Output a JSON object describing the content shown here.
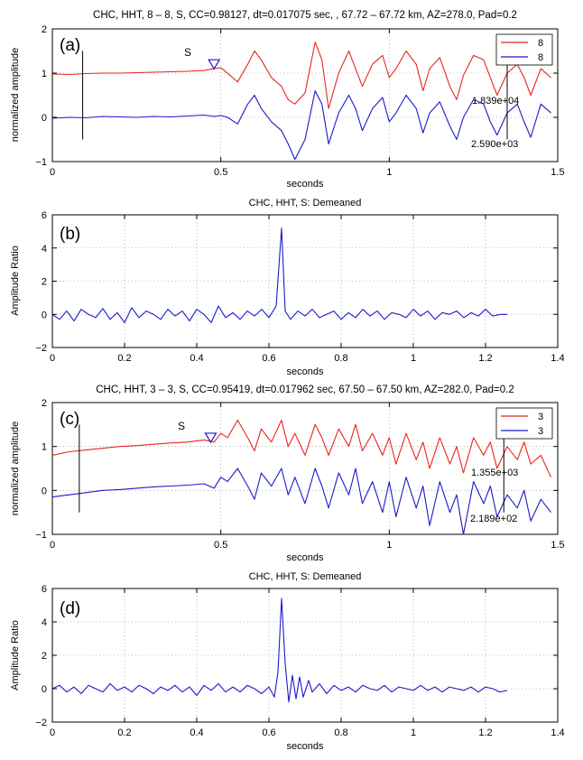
{
  "chart_data": [
    {
      "id": "a",
      "type": "line",
      "panel_label": "(a)",
      "title": "CHC, HHT, 8 – 8, S, CC=0.98127,  dt=0.017075 sec,  , 67.72 – 67.72 km, AZ=278.0, Pad=0.2",
      "xlabel": "seconds",
      "ylabel": "normalized amplitude",
      "xlim": [
        0,
        1.5
      ],
      "ylim": [
        -1,
        2
      ],
      "xticks": [
        0,
        0.5,
        1,
        1.5
      ],
      "xtick_labels": [
        "0",
        "0.5",
        "1",
        "1.5"
      ],
      "yticks": [
        -1,
        0,
        1,
        2
      ],
      "ytick_labels": [
        "−1",
        "0",
        "1",
        "2"
      ],
      "grid": true,
      "legend_placement": "top-right",
      "series": [
        {
          "name": "8",
          "color": "#e8251e",
          "x": [
            0,
            0.05,
            0.1,
            0.15,
            0.2,
            0.25,
            0.3,
            0.35,
            0.4,
            0.45,
            0.48,
            0.5,
            0.52,
            0.55,
            0.58,
            0.6,
            0.62,
            0.65,
            0.68,
            0.7,
            0.72,
            0.75,
            0.78,
            0.8,
            0.82,
            0.85,
            0.88,
            0.9,
            0.92,
            0.95,
            0.98,
            1.0,
            1.02,
            1.05,
            1.08,
            1.1,
            1.12,
            1.15,
            1.18,
            1.2,
            1.22,
            1.25,
            1.28,
            1.3,
            1.32,
            1.35,
            1.38,
            1.4,
            1.42,
            1.45,
            1.48
          ],
          "y": [
            0.98,
            0.97,
            0.99,
            1.0,
            1.0,
            1.01,
            1.02,
            1.03,
            1.04,
            1.06,
            1.1,
            1.12,
            1.0,
            0.8,
            1.2,
            1.5,
            1.3,
            0.9,
            0.7,
            0.4,
            0.3,
            0.55,
            1.7,
            1.3,
            0.2,
            1.0,
            1.5,
            1.1,
            0.7,
            1.2,
            1.4,
            0.9,
            1.1,
            1.5,
            1.2,
            0.6,
            1.1,
            1.35,
            0.7,
            0.4,
            0.95,
            1.4,
            1.3,
            0.9,
            0.5,
            1.0,
            1.2,
            0.9,
            0.5,
            1.1,
            0.9
          ]
        },
        {
          "name": "8",
          "color": "#1a1acc",
          "x": [
            0,
            0.05,
            0.1,
            0.15,
            0.2,
            0.25,
            0.3,
            0.35,
            0.4,
            0.45,
            0.48,
            0.5,
            0.52,
            0.55,
            0.58,
            0.6,
            0.62,
            0.65,
            0.68,
            0.7,
            0.72,
            0.75,
            0.78,
            0.8,
            0.82,
            0.85,
            0.88,
            0.9,
            0.92,
            0.95,
            0.98,
            1.0,
            1.02,
            1.05,
            1.08,
            1.1,
            1.12,
            1.15,
            1.18,
            1.2,
            1.22,
            1.25,
            1.28,
            1.3,
            1.32,
            1.35,
            1.38,
            1.4,
            1.42,
            1.45,
            1.48
          ],
          "y": [
            -0.02,
            0.0,
            -0.01,
            0.02,
            0.01,
            0.0,
            0.02,
            0.01,
            0.03,
            0.05,
            0.02,
            0.04,
            0.0,
            -0.15,
            0.3,
            0.5,
            0.2,
            -0.1,
            -0.3,
            -0.6,
            -0.95,
            -0.5,
            0.6,
            0.3,
            -0.6,
            0.1,
            0.5,
            0.2,
            -0.3,
            0.2,
            0.45,
            -0.1,
            0.1,
            0.5,
            0.2,
            -0.35,
            0.1,
            0.35,
            -0.2,
            -0.5,
            0.0,
            0.4,
            0.3,
            -0.1,
            -0.4,
            0.1,
            0.3,
            -0.1,
            -0.45,
            0.3,
            0.1
          ]
        }
      ],
      "vertical_markers": [
        {
          "x": 0.09
        },
        {
          "x": 1.35
        }
      ],
      "pick": {
        "label": "S",
        "x": 0.48,
        "y": 1.2
      },
      "annotations": [
        "1.839e+04",
        "2.590e+03"
      ]
    },
    {
      "id": "b",
      "type": "line",
      "panel_label": "(b)",
      "title": "CHC, HHT, S: Demeaned",
      "xlabel": "seconds",
      "ylabel": "Amplitude Ratio",
      "xlim": [
        0,
        1.4
      ],
      "ylim": [
        -2,
        6
      ],
      "xticks": [
        0,
        0.2,
        0.4,
        0.6,
        0.8,
        1.0,
        1.2,
        1.4
      ],
      "xtick_labels": [
        "0",
        "0.2",
        "0.4",
        "0.6",
        "0.8",
        "1",
        "1.2",
        "1.4"
      ],
      "yticks": [
        -2,
        0,
        2,
        4,
        6
      ],
      "ytick_labels": [
        "−2",
        "0",
        "2",
        "4",
        "6"
      ],
      "grid": true,
      "series": [
        {
          "name": "",
          "color": "#1a1acc",
          "x": [
            0,
            0.02,
            0.04,
            0.06,
            0.08,
            0.1,
            0.12,
            0.14,
            0.16,
            0.18,
            0.2,
            0.22,
            0.24,
            0.26,
            0.28,
            0.3,
            0.32,
            0.34,
            0.36,
            0.38,
            0.4,
            0.42,
            0.44,
            0.46,
            0.48,
            0.5,
            0.52,
            0.54,
            0.56,
            0.58,
            0.6,
            0.62,
            0.635,
            0.645,
            0.66,
            0.68,
            0.7,
            0.72,
            0.74,
            0.76,
            0.78,
            0.8,
            0.82,
            0.84,
            0.86,
            0.88,
            0.9,
            0.92,
            0.94,
            0.96,
            0.98,
            1.0,
            1.02,
            1.04,
            1.06,
            1.08,
            1.1,
            1.12,
            1.14,
            1.16,
            1.18,
            1.2,
            1.22,
            1.24,
            1.26
          ],
          "y": [
            0,
            -0.3,
            0.2,
            -0.4,
            0.3,
            0,
            -0.2,
            0.35,
            -0.3,
            0.1,
            -0.5,
            0.4,
            -0.2,
            0.2,
            0,
            -0.3,
            0.3,
            -0.1,
            0.2,
            -0.4,
            0.3,
            0,
            -0.5,
            0.5,
            -0.2,
            0.1,
            -0.3,
            0.2,
            -0.1,
            0.3,
            -0.2,
            0.5,
            5.2,
            0.2,
            -0.3,
            0.2,
            -0.1,
            0.3,
            -0.2,
            0,
            0.2,
            -0.3,
            0.1,
            -0.2,
            0.3,
            -0.1,
            0.2,
            -0.3,
            0.1,
            0,
            -0.2,
            0.3,
            -0.1,
            0.2,
            -0.3,
            0.1,
            0,
            0.2,
            -0.2,
            0.1,
            -0.1,
            0.3,
            -0.1,
            0,
            0
          ]
        }
      ]
    },
    {
      "id": "c",
      "type": "line",
      "panel_label": "(c)",
      "title": "CHC, HHT, 3 – 3, S, CC=0.95419,  dt=0.017962 sec,   67.50 – 67.50 km, AZ=282.0, Pad=0.2",
      "xlabel": "seconds",
      "ylabel": "normalized amplitude",
      "xlim": [
        0,
        1.5
      ],
      "ylim": [
        -1,
        2
      ],
      "xticks": [
        0,
        0.5,
        1,
        1.5
      ],
      "xtick_labels": [
        "0",
        "0.5",
        "1",
        "1.5"
      ],
      "yticks": [
        -1,
        0,
        1,
        2
      ],
      "ytick_labels": [
        "−1",
        "0",
        "1",
        "2"
      ],
      "grid": true,
      "legend_placement": "top-right",
      "series": [
        {
          "name": "3",
          "color": "#e8251e",
          "x": [
            0,
            0.05,
            0.1,
            0.15,
            0.2,
            0.25,
            0.3,
            0.35,
            0.4,
            0.45,
            0.48,
            0.5,
            0.52,
            0.55,
            0.58,
            0.6,
            0.62,
            0.65,
            0.68,
            0.7,
            0.72,
            0.75,
            0.78,
            0.8,
            0.82,
            0.85,
            0.88,
            0.9,
            0.92,
            0.95,
            0.98,
            1.0,
            1.02,
            1.05,
            1.08,
            1.1,
            1.12,
            1.15,
            1.18,
            1.2,
            1.22,
            1.25,
            1.28,
            1.3,
            1.32,
            1.35,
            1.38,
            1.4,
            1.42,
            1.45,
            1.48
          ],
          "y": [
            0.8,
            0.88,
            0.92,
            0.96,
            1.0,
            1.02,
            1.05,
            1.08,
            1.1,
            1.15,
            1.1,
            1.3,
            1.2,
            1.6,
            1.2,
            0.9,
            1.4,
            1.1,
            1.6,
            1.0,
            1.3,
            0.8,
            1.5,
            1.2,
            0.8,
            1.4,
            1.0,
            1.5,
            0.9,
            1.3,
            0.8,
            1.2,
            0.6,
            1.3,
            0.7,
            1.1,
            0.5,
            1.2,
            0.6,
            1.0,
            0.4,
            1.2,
            0.8,
            1.1,
            0.5,
            1.0,
            0.7,
            1.1,
            0.6,
            0.8,
            0.3
          ]
        },
        {
          "name": "3",
          "color": "#1a1acc",
          "x": [
            0,
            0.05,
            0.1,
            0.15,
            0.2,
            0.25,
            0.3,
            0.35,
            0.4,
            0.45,
            0.48,
            0.5,
            0.52,
            0.55,
            0.58,
            0.6,
            0.62,
            0.65,
            0.68,
            0.7,
            0.72,
            0.75,
            0.78,
            0.8,
            0.82,
            0.85,
            0.88,
            0.9,
            0.92,
            0.95,
            0.98,
            1.0,
            1.02,
            1.05,
            1.08,
            1.1,
            1.12,
            1.15,
            1.18,
            1.2,
            1.22,
            1.25,
            1.28,
            1.3,
            1.32,
            1.35,
            1.38,
            1.4,
            1.42,
            1.45,
            1.48
          ],
          "y": [
            -0.15,
            -0.1,
            -0.05,
            0.0,
            0.02,
            0.05,
            0.08,
            0.1,
            0.12,
            0.15,
            0.05,
            0.3,
            0.2,
            0.5,
            0.1,
            -0.2,
            0.4,
            0.1,
            0.5,
            -0.1,
            0.3,
            -0.3,
            0.5,
            0.1,
            -0.4,
            0.4,
            -0.1,
            0.5,
            -0.3,
            0.2,
            -0.5,
            0.2,
            -0.6,
            0.3,
            -0.4,
            0.1,
            -0.8,
            0.2,
            -0.5,
            -0.1,
            -1.0,
            0.2,
            -0.3,
            0.1,
            -0.6,
            -0.1,
            -0.4,
            0.0,
            -0.7,
            -0.2,
            -0.5
          ]
        }
      ],
      "vertical_markers": [
        {
          "x": 0.08
        },
        {
          "x": 1.34
        }
      ],
      "pick": {
        "label": "S",
        "x": 0.47,
        "y": 1.2
      },
      "annotations": [
        "1.355e+03",
        "2.189e+02"
      ]
    },
    {
      "id": "d",
      "type": "line",
      "panel_label": "(d)",
      "title": "CHC, HHT, S: Demeaned",
      "xlabel": "seconds",
      "ylabel": "Amplitude Ratio",
      "xlim": [
        0,
        1.4
      ],
      "ylim": [
        -2,
        6
      ],
      "xticks": [
        0,
        0.2,
        0.4,
        0.6,
        0.8,
        1.0,
        1.2,
        1.4
      ],
      "xtick_labels": [
        "0",
        "0.2",
        "0.4",
        "0.6",
        "0.8",
        "1",
        "1.2",
        "1.4"
      ],
      "yticks": [
        -2,
        0,
        2,
        4,
        6
      ],
      "ytick_labels": [
        "−2",
        "0",
        "2",
        "4",
        "6"
      ],
      "grid": true,
      "series": [
        {
          "name": "",
          "color": "#1a1acc",
          "x": [
            0,
            0.02,
            0.04,
            0.06,
            0.08,
            0.1,
            0.12,
            0.14,
            0.16,
            0.18,
            0.2,
            0.22,
            0.24,
            0.26,
            0.28,
            0.3,
            0.32,
            0.34,
            0.36,
            0.38,
            0.4,
            0.42,
            0.44,
            0.46,
            0.48,
            0.5,
            0.52,
            0.54,
            0.56,
            0.58,
            0.6,
            0.615,
            0.625,
            0.635,
            0.645,
            0.655,
            0.665,
            0.675,
            0.685,
            0.695,
            0.71,
            0.72,
            0.74,
            0.76,
            0.78,
            0.8,
            0.82,
            0.84,
            0.86,
            0.88,
            0.9,
            0.92,
            0.94,
            0.96,
            0.98,
            1.0,
            1.02,
            1.04,
            1.06,
            1.08,
            1.1,
            1.12,
            1.14,
            1.16,
            1.18,
            1.2,
            1.22,
            1.24,
            1.26
          ],
          "y": [
            0,
            0.2,
            -0.2,
            0.1,
            -0.3,
            0.2,
            0,
            -0.2,
            0.3,
            -0.1,
            0.1,
            -0.2,
            0.2,
            0,
            -0.3,
            0.1,
            -0.1,
            0.2,
            -0.2,
            0.1,
            -0.4,
            0.2,
            -0.1,
            0.3,
            -0.2,
            0.1,
            -0.2,
            0.2,
            0,
            -0.3,
            0.1,
            -0.5,
            1.0,
            5.4,
            1.5,
            -0.8,
            0.8,
            -0.6,
            0.7,
            -0.5,
            0.5,
            -0.2,
            0.3,
            -0.3,
            0.2,
            -0.1,
            0.1,
            -0.2,
            0.2,
            0,
            -0.1,
            0.2,
            -0.2,
            0.1,
            0,
            -0.1,
            0.2,
            -0.1,
            0.1,
            -0.2,
            0.1,
            0,
            -0.1,
            0.1,
            -0.2,
            0.1,
            0,
            -0.2,
            -0.1
          ]
        }
      ]
    }
  ]
}
